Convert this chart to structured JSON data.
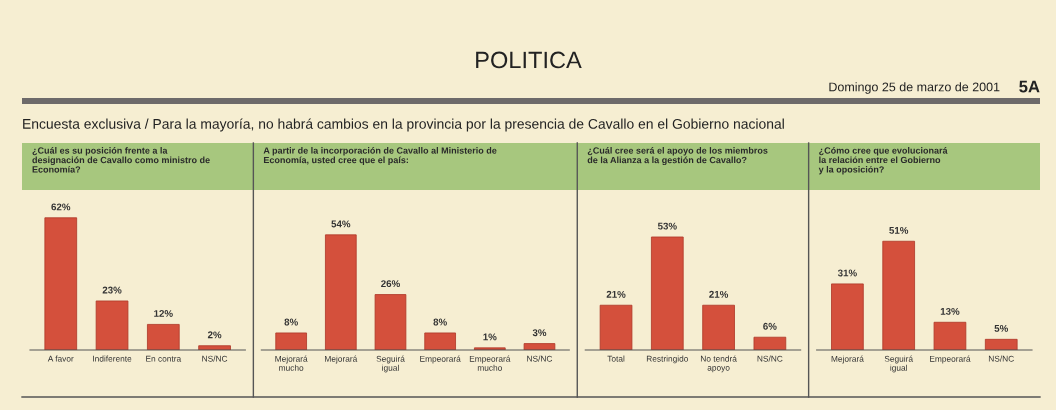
{
  "chart_data": [
    {
      "type": "bar",
      "title": "¿Cuál es su posición frente a la\ndesignación de Cavallo como ministro de\nEconomía?",
      "categories": [
        "A favor",
        "Indiferente",
        "En contra",
        "NS/NC"
      ],
      "values": [
        62,
        23,
        12,
        2
      ],
      "value_labels": [
        "62%",
        "23%",
        "12%",
        "2%"
      ],
      "color": "#d4503c",
      "annotations": [
        "POLITICA",
        "Domingo 25 de marzo de 2001",
        "5A",
        "Encuesta exclusiva / Para la mayoría, no habrá cambios en la provincia por la presencia de Cavallo en el Gobierno nacional"
      ]
    },
    {
      "type": "bar",
      "title": "A partir de la incorporación de Cavallo al Ministerio de\nEconomía, usted cree que el país:",
      "categories": [
        "Mejorará\nmucho",
        "Mejorará",
        "Seguirá\nigual",
        "Empeorará",
        "Empeorará\nmucho",
        "NS/NC"
      ],
      "values": [
        8,
        54,
        26,
        8,
        1,
        3
      ],
      "value_labels": [
        "8%",
        "54%",
        "26%",
        "8%",
        "1%",
        "3%"
      ],
      "color": "#d4503c"
    },
    {
      "type": "bar",
      "title": "¿Cuál cree será el apoyo de los miembros\nde la Alianza a la gestión de Cavallo?",
      "categories": [
        "Total",
        "Restringido",
        "No tendrá\napoyo",
        "NS/NC"
      ],
      "values": [
        21,
        53,
        21,
        6
      ],
      "value_labels": [
        "21%",
        "53%",
        "21%",
        "6%"
      ],
      "color": "#d4503c"
    },
    {
      "type": "bar",
      "title": "¿Cómo cree que evolucionará\nla relación entre el Gobierno\ny la oposición?",
      "categories": [
        "Mejorará",
        "Seguirá\nigual",
        "Empeorará",
        "NS/NC"
      ],
      "values": [
        31,
        51,
        13,
        5
      ],
      "value_labels": [
        "31%",
        "51%",
        "13%",
        "5%"
      ],
      "color": "#d4503c"
    }
  ]
}
